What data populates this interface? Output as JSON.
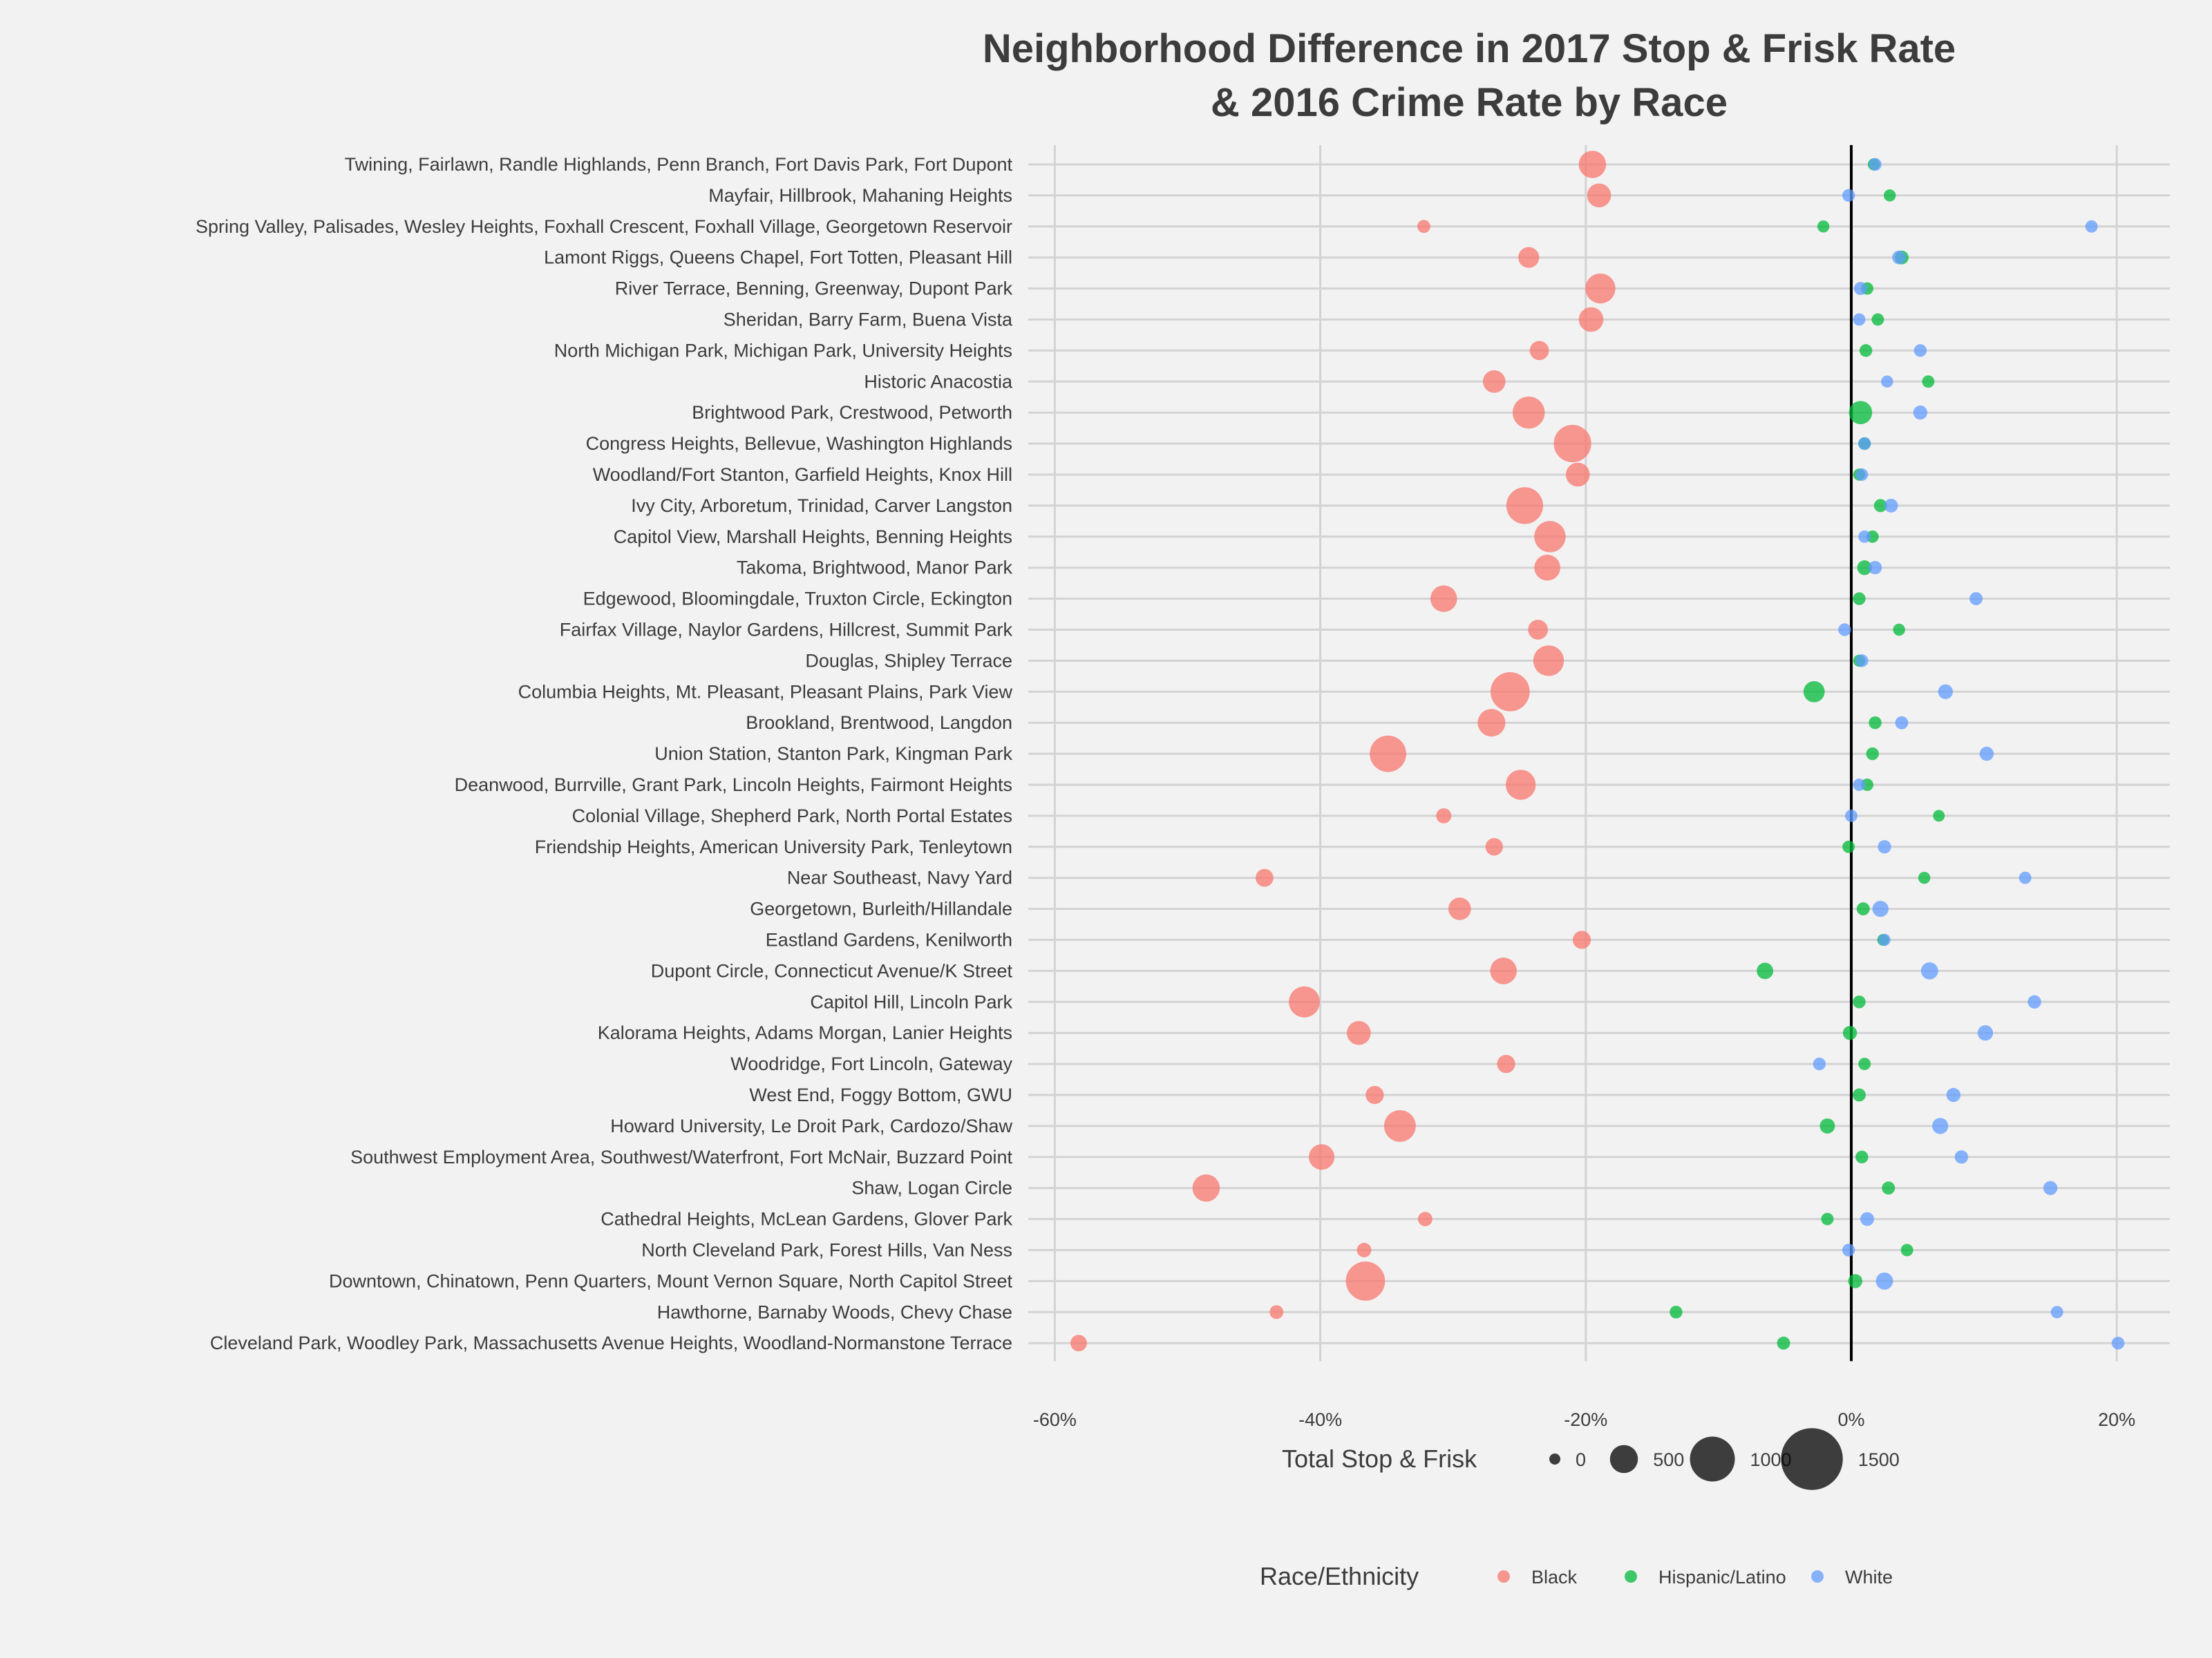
{
  "chart_data": {
    "type": "scatter",
    "title": "Neighborhood Difference in 2017 Stop & Frisk Rate",
    "subtitle": "& 2016 Crime Rate by Race",
    "xlabel": "",
    "ylabel": "",
    "xlim": [
      -62,
      24
    ],
    "x_ticks": [
      -60,
      -40,
      -20,
      0,
      20
    ],
    "x_tick_labels": [
      "-60%",
      "-40%",
      "-20%",
      "0%",
      "20%"
    ],
    "grid": true,
    "reference_line_x": 0,
    "categories": [
      "Twining, Fairlawn, Randle Highlands, Penn Branch, Fort Davis Park, Fort Dupont",
      "Mayfair, Hillbrook, Mahaning Heights",
      "Spring Valley, Palisades, Wesley Heights, Foxhall Crescent, Foxhall Village, Georgetown Reservoir",
      "Lamont Riggs, Queens Chapel, Fort Totten, Pleasant Hill",
      "River Terrace, Benning, Greenway, Dupont Park",
      "Sheridan, Barry Farm, Buena Vista",
      "North Michigan Park, Michigan Park, University Heights",
      "Historic Anacostia",
      "Brightwood Park, Crestwood, Petworth",
      "Congress Heights, Bellevue, Washington Highlands",
      "Woodland/Fort Stanton, Garfield Heights, Knox Hill",
      "Ivy City, Arboretum, Trinidad, Carver Langston",
      "Capitol View, Marshall Heights, Benning Heights",
      "Takoma, Brightwood, Manor Park",
      "Edgewood, Bloomingdale, Truxton Circle, Eckington",
      "Fairfax Village, Naylor Gardens, Hillcrest, Summit Park",
      "Douglas, Shipley Terrace",
      "Columbia Heights, Mt. Pleasant, Pleasant Plains, Park View",
      "Brookland, Brentwood, Langdon",
      "Union Station, Stanton Park, Kingman Park",
      "Deanwood, Burrville, Grant Park, Lincoln Heights, Fairmont Heights",
      "Colonial Village, Shepherd Park, North Portal Estates",
      "Friendship Heights, American University Park, Tenleytown",
      "Near Southeast, Navy Yard",
      "Georgetown, Burleith/Hillandale",
      "Eastland Gardens, Kenilworth",
      "Dupont Circle, Connecticut Avenue/K Street",
      "Capitol Hill, Lincoln Park",
      "Kalorama Heights, Adams Morgan, Lanier Heights",
      "Woodridge, Fort Lincoln, Gateway",
      "West End, Foggy Bottom, GWU",
      "Howard University, Le Droit Park, Cardozo/Shaw",
      "Southwest Employment Area, Southwest/Waterfront, Fort McNair, Buzzard Point",
      "Shaw, Logan Circle",
      "Cathedral Heights, McLean Gardens, Glover Park",
      "North Cleveland Park, Forest Hills, Van Ness",
      "Downtown, Chinatown, Penn Quarters, Mount Vernon Square, North Capitol Street",
      "Hawthorne, Barnaby Woods, Chevy Chase",
      "Cleveland Park, Woodley Park, Massachusetts Avenue Heights, Woodland-Normanstone Terrace"
    ],
    "series": [
      {
        "name": "Black",
        "color": "#f8766d",
        "x": [
          -19.5,
          -19.0,
          -32.2,
          -24.3,
          -18.9,
          -19.6,
          -23.5,
          -26.9,
          -24.3,
          -21.0,
          -20.6,
          -24.6,
          -22.7,
          -22.9,
          -30.7,
          -23.6,
          -22.8,
          -25.7,
          -27.1,
          -34.9,
          -24.9,
          -30.7,
          -26.9,
          -44.2,
          -29.5,
          -20.3,
          -26.2,
          -41.2,
          -37.1,
          -26.0,
          -35.9,
          -34.0,
          -39.9,
          -48.6,
          -32.1,
          -36.7,
          -36.6,
          -43.3,
          -58.2
        ],
        "sizes": [
          480,
          380,
          60,
          290,
          560,
          400,
          240,
          340,
          620,
          780,
          380,
          760,
          600,
          440,
          460,
          260,
          580,
          830,
          490,
          750,
          560,
          120,
          190,
          200,
          340,
          210,
          460,
          590,
          380,
          210,
          210,
          610,
          430,
          480,
          100,
          100,
          830,
          80,
          160
        ]
      },
      {
        "name": "Hispanic/Latino",
        "color": "#00ba38",
        "x": [
          1.7,
          2.9,
          -2.1,
          3.8,
          1.2,
          2.0,
          1.1,
          5.8,
          0.7,
          1.0,
          0.6,
          2.2,
          1.6,
          1.0,
          0.6,
          3.6,
          0.6,
          -2.8,
          1.8,
          1.6,
          1.2,
          6.6,
          -0.2,
          5.5,
          0.9,
          2.4,
          -6.5,
          0.6,
          -0.1,
          1.0,
          0.6,
          -1.8,
          0.8,
          2.8,
          -1.8,
          4.2,
          0.3,
          -13.2,
          -5.1
        ],
        "sizes": [
          30,
          30,
          30,
          80,
          40,
          40,
          50,
          40,
          360,
          40,
          30,
          60,
          40,
          110,
          50,
          30,
          30,
          300,
          50,
          50,
          40,
          20,
          40,
          30,
          60,
          20,
          160,
          50,
          90,
          40,
          60,
          120,
          50,
          60,
          40,
          40,
          90,
          50,
          60
        ]
      },
      {
        "name": "White",
        "color": "#619cff",
        "x": [
          1.8,
          -0.2,
          18.1,
          3.6,
          0.7,
          0.6,
          5.2,
          2.7,
          5.2,
          1.0,
          0.8,
          3.0,
          1.0,
          1.8,
          9.4,
          -0.5,
          0.8,
          7.1,
          3.8,
          10.2,
          0.6,
          0.0,
          2.5,
          13.1,
          2.2,
          2.5,
          5.9,
          13.8,
          10.1,
          -2.4,
          7.7,
          6.7,
          8.3,
          15.0,
          1.2,
          -0.2,
          2.5,
          15.5,
          20.1
        ],
        "sizes": [
          50,
          50,
          40,
          80,
          60,
          40,
          50,
          30,
          90,
          50,
          40,
          80,
          40,
          70,
          60,
          50,
          50,
          110,
          60,
          90,
          40,
          40,
          70,
          40,
          150,
          30,
          180,
          70,
          130,
          50,
          90,
          150,
          70,
          90,
          80,
          50,
          180,
          40,
          50
        ]
      }
    ],
    "size_legend": {
      "title": "Total Stop & Frisk",
      "values": [
        0,
        500,
        1000,
        1500
      ],
      "labels": [
        "0",
        "500",
        "1000",
        "1500"
      ]
    },
    "color_legend": {
      "title": "Race/Ethnicity",
      "labels": [
        "Black",
        "Hispanic/Latino",
        "White"
      ]
    },
    "legend_position": "bottom"
  }
}
